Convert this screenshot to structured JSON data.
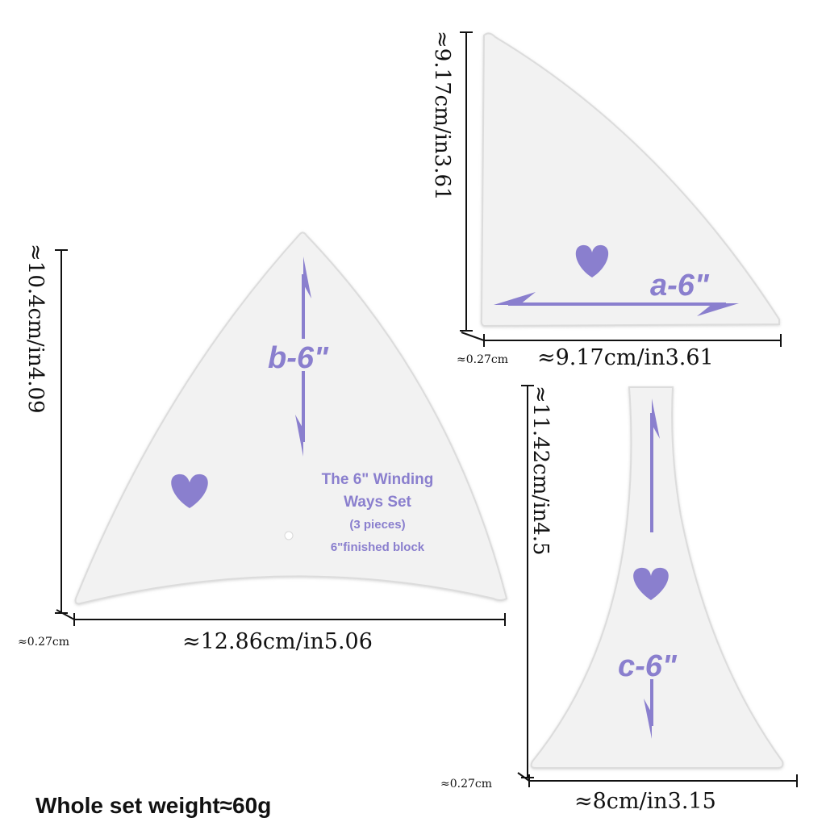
{
  "colors": {
    "background": "#ffffff",
    "template_fill": "#f2f2f2",
    "template_edge": "#dcdcdc",
    "print_purple": "#8a7fce",
    "dimension_line": "#111111"
  },
  "piece_a": {
    "label": "a-6\"",
    "height_dim": "≈9.17cm/in3.61",
    "width_dim": "≈9.17cm/in3.61",
    "thickness_dim": "≈0.27cm",
    "icons": [
      "heart-icon",
      "double-arrow-icon"
    ]
  },
  "piece_b": {
    "label": "b-6\"",
    "height_dim": "≈10.4cm/in4.09",
    "width_dim": "≈12.86cm/in5.06",
    "thickness_dim": "≈0.27cm",
    "set_title_line1": "The 6\" Winding",
    "set_title_line2": "Ways Set",
    "set_pieces": "(3 pieces)",
    "set_block": "6\"finished block",
    "icons": [
      "heart-icon",
      "double-arrow-icon"
    ]
  },
  "piece_c": {
    "label": "c-6\"",
    "height_dim": "≈11.42cm/in4.5",
    "width_dim": "≈8cm/in3.15",
    "thickness_dim": "≈0.27cm",
    "icons": [
      "heart-icon",
      "double-arrow-icon"
    ]
  },
  "footer": {
    "weight_note": "Whole set weight≈60g"
  }
}
